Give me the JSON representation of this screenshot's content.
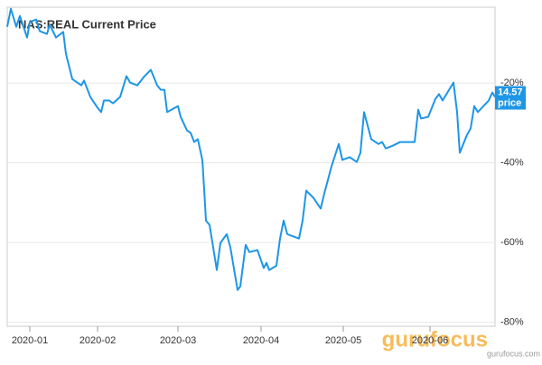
{
  "chart_data": {
    "type": "line",
    "series": [
      {
        "name": "NAS:REAL Current Price",
        "color": "#1e96e6",
        "x": [
          0,
          1,
          2.5,
          3.5,
          5.5,
          6.25,
          8,
          9,
          11,
          11.75,
          13.5,
          15.5,
          16.25,
          18,
          20.5,
          21.25,
          23,
          25,
          26,
          26.75,
          28.25,
          29.25,
          31.25,
          33,
          34,
          36,
          38,
          39.75,
          41.5,
          42.5,
          43.5,
          44.25,
          47.25,
          48,
          49.75,
          50.75,
          51.75,
          52.75,
          54,
          54.5,
          55,
          56,
          58,
          59,
          60.75,
          61.75,
          63.75,
          64.5,
          66,
          67,
          69.25,
          71,
          71.75,
          72.5,
          74.5,
          75.5,
          76.5,
          77.5,
          80.75,
          81.75,
          82.75,
          84.75,
          86.75,
          87.75,
          89.75,
          91.75,
          92.75,
          94.75,
          96.75,
          97.75,
          98.75,
          100.75,
          102.75,
          103.75,
          104.75,
          106.75,
          108.75,
          112.75,
          113.75,
          114.5,
          116.5,
          118.5,
          119.5,
          120.5,
          123.5,
          124.5,
          125.25,
          127.25,
          128.25,
          129.25,
          130.25,
          133.25,
          134.25,
          135
        ],
        "values": [
          -5.9,
          -1.4,
          -5.9,
          -3.2,
          -8.6,
          -4.7,
          -4.1,
          -7.0,
          -7.7,
          -5.4,
          -8.6,
          -7.2,
          -12.7,
          -19.0,
          -20.6,
          -19.4,
          -23.5,
          -26.2,
          -27.3,
          -24.4,
          -24.4,
          -25.1,
          -23.5,
          -18.3,
          -19.9,
          -20.6,
          -18.3,
          -16.7,
          -20.6,
          -21.7,
          -21.7,
          -27.3,
          -25.8,
          -28.5,
          -31.9,
          -32.5,
          -34.8,
          -34.1,
          -39.3,
          -46.6,
          -54.5,
          -55.6,
          -66.9,
          -60.1,
          -57.9,
          -61.2,
          -71.9,
          -71.0,
          -60.6,
          -62.4,
          -61.9,
          -66.4,
          -65.1,
          -66.9,
          -65.8,
          -59.0,
          -54.5,
          -57.9,
          -59.0,
          -54.5,
          -47.0,
          -48.8,
          -51.5,
          -47.7,
          -40.9,
          -35.3,
          -39.3,
          -38.6,
          -39.8,
          -37.5,
          -27.3,
          -34.1,
          -35.3,
          -34.8,
          -36.4,
          -35.7,
          -34.8,
          -34.8,
          -26.7,
          -28.9,
          -28.5,
          -24.0,
          -22.8,
          -24.4,
          -19.9,
          -27.3,
          -37.5,
          -33.0,
          -31.4,
          -25.8,
          -27.3,
          -24.4,
          -22.4,
          -23.5
        ]
      }
    ],
    "xlim": [
      0,
      135
    ],
    "xticks": [
      {
        "value": 6.25,
        "label": "2020-01"
      },
      {
        "value": 25,
        "label": "2020-02"
      },
      {
        "value": 47.25,
        "label": "2020-03"
      },
      {
        "value": 70.25,
        "label": "2020-04"
      },
      {
        "value": 93,
        "label": "2020-05"
      },
      {
        "value": 117,
        "label": "2020-06"
      }
    ],
    "ylim": [
      -81,
      -1
    ],
    "yticks": [
      {
        "value": -20,
        "label": "-20%"
      },
      {
        "value": -40,
        "label": "-40%"
      },
      {
        "value": -60,
        "label": "-60%"
      },
      {
        "value": -80,
        "label": "-80%"
      }
    ],
    "grid": true,
    "annotations": [
      "14.57",
      "price"
    ],
    "watermark": [
      "gurufocus",
      "gurufocus.com"
    ]
  }
}
